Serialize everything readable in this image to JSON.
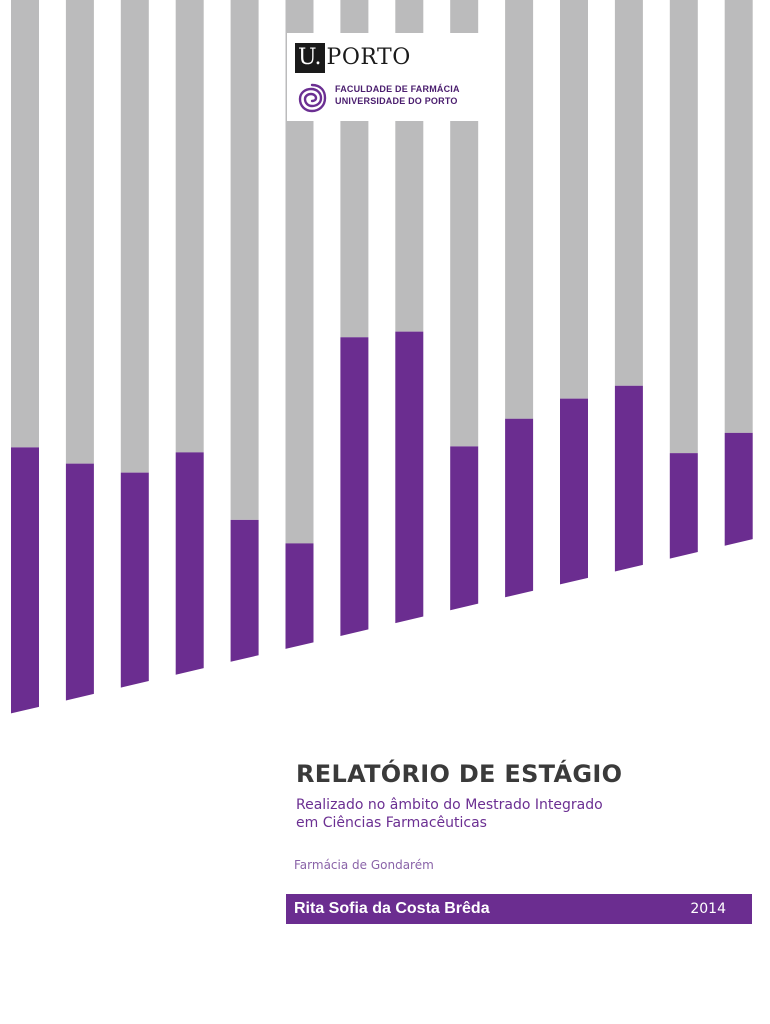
{
  "colors": {
    "gray": "#bbbbbc",
    "purple": "#6b2d90",
    "text_dark": "#3a3a3a",
    "text_purple": "#6b2f92"
  },
  "bars": [
    0.36,
    0.32,
    0.29,
    0.3,
    0.19,
    0.14,
    0.35,
    0.34,
    0.22,
    0.24,
    0.25,
    0.25,
    0.14,
    0.15
  ],
  "logo": {
    "u": "U.",
    "porto": "PORTO",
    "faculdade_line1": "FACULDADE DE FARMÁCIA",
    "faculdade_line2": "UNIVERSIDADE DO PORTO",
    "icon": "spiral-icon"
  },
  "title": "RELATÓRIO DE ESTÁGIO",
  "subtitle_line1": "Realizado no âmbito do Mestrado Integrado",
  "subtitle_line2": "em Ciências Farmacêuticas",
  "pharmacy": "Farmácia de Gondarém",
  "author": "Rita Sofia da Costa Brêda",
  "year": "2014"
}
